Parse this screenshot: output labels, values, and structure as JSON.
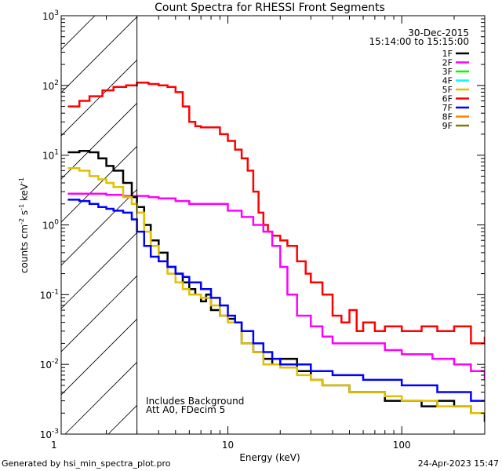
{
  "chart_data": {
    "type": "line",
    "title": "Count Spectra for RHESSI Front Segments",
    "xlabel": "Energy (keV)",
    "ylabel_parts": {
      "base": "counts cm",
      "exp1": "-2",
      "mid": " s",
      "exp2": "-1",
      "unit": " keV",
      "exp3": "-1"
    },
    "xscale": "log",
    "yscale": "log",
    "xlim": [
      1.1,
      300
    ],
    "ylim": [
      0.001,
      1000
    ],
    "x_tick_labels": [
      {
        "value": 1,
        "label": "1"
      },
      {
        "value": 10,
        "label": "10"
      },
      {
        "value": 100,
        "label": "100"
      }
    ],
    "y_tick_labels": [
      {
        "value": 0.001,
        "base": "10",
        "exp": "-3"
      },
      {
        "value": 0.01,
        "base": "10",
        "exp": "-2"
      },
      {
        "value": 0.1,
        "base": "10",
        "exp": "-1"
      },
      {
        "value": 1,
        "base": "10",
        "exp": "0"
      },
      {
        "value": 10,
        "base": "10",
        "exp": "1"
      },
      {
        "value": 100,
        "base": "10",
        "exp": "2"
      },
      {
        "value": 1000,
        "base": "10",
        "exp": "3"
      }
    ],
    "hatched_region_kev": [
      1.1,
      3.0
    ],
    "date": "30-Dec-2015",
    "time_range": "15:14:00 to 15:15:00",
    "annotations": [
      "Includes Background",
      "Att A0, FDecim 5"
    ],
    "legend": [
      {
        "name": "1F",
        "color": "#000000"
      },
      {
        "name": "2F",
        "color": "#ff00ff"
      },
      {
        "name": "3F",
        "color": "#00ff00"
      },
      {
        "name": "4F",
        "color": "#00ffff"
      },
      {
        "name": "5F",
        "color": "#e0c000"
      },
      {
        "name": "6F",
        "color": "#ff0000"
      },
      {
        "name": "7F",
        "color": "#0000ff"
      },
      {
        "name": "8F",
        "color": "#ff8000"
      },
      {
        "name": "9F",
        "color": "#808000"
      }
    ],
    "series": [
      {
        "name": "6F",
        "color": "#ff0000",
        "x": [
          1.2,
          1.4,
          1.6,
          1.9,
          2.2,
          2.6,
          3.0,
          3.5,
          4.0,
          4.5,
          5.0,
          5.5,
          6.0,
          6.5,
          7.0,
          8.0,
          9.0,
          10.0,
          11.0,
          12.0,
          13.0,
          14.0,
          15.0,
          16.0,
          17.0,
          18.0,
          20.0,
          22.0,
          25.0,
          28.0,
          30.0,
          35.0,
          40.0,
          45.0,
          50.0,
          55.0,
          60.0,
          70.0,
          80.0,
          100.0,
          130.0,
          160.0,
          200.0,
          250.0,
          300.0
        ],
        "values": [
          50,
          60,
          70,
          85,
          95,
          100,
          110,
          105,
          100,
          95,
          80,
          50,
          30,
          26,
          25,
          25,
          20,
          16,
          12,
          9,
          6,
          3,
          1.5,
          1.0,
          0.8,
          0.7,
          0.6,
          0.5,
          0.3,
          0.2,
          0.15,
          0.1,
          0.05,
          0.04,
          0.06,
          0.03,
          0.04,
          0.03,
          0.035,
          0.03,
          0.035,
          0.03,
          0.035,
          0.02,
          0.025
        ]
      },
      {
        "name": "2F",
        "color": "#ff00ff",
        "x": [
          1.2,
          1.5,
          2.0,
          2.5,
          3.0,
          3.5,
          4.0,
          5.0,
          6.0,
          7.0,
          8.0,
          10.0,
          12.0,
          14.0,
          16.0,
          18.0,
          20.0,
          22.0,
          25.0,
          30.0,
          35.0,
          40.0,
          50.0,
          60.0,
          80.0,
          100.0,
          150.0,
          200.0,
          250.0,
          300.0
        ],
        "values": [
          2.8,
          2.8,
          2.7,
          2.6,
          2.6,
          2.5,
          2.4,
          2.2,
          2.0,
          2.0,
          2.0,
          1.6,
          1.3,
          1.0,
          0.8,
          0.5,
          0.25,
          0.1,
          0.05,
          0.035,
          0.025,
          0.02,
          0.02,
          0.02,
          0.016,
          0.014,
          0.012,
          0.01,
          0.008,
          0.006
        ]
      },
      {
        "name": "1F",
        "color": "#000000",
        "x": [
          1.2,
          1.4,
          1.6,
          1.8,
          2.0,
          2.2,
          2.5,
          2.8,
          3.0,
          3.3,
          3.6,
          4.0,
          4.5,
          5.0,
          5.5,
          6.0,
          6.5,
          7.0,
          7.5,
          8.0,
          9.0,
          10.0,
          11.0,
          12.0,
          14.0,
          16.0,
          18.0,
          20.0,
          25.0,
          30.0,
          35.0,
          40.0,
          50.0,
          60.0,
          80.0,
          100.0,
          130.0,
          160.0,
          200.0,
          250.0,
          300.0
        ],
        "values": [
          11,
          11.5,
          11,
          9,
          7,
          6,
          4,
          2.5,
          1.8,
          1.0,
          0.6,
          0.4,
          0.25,
          0.2,
          0.15,
          0.12,
          0.1,
          0.08,
          0.1,
          0.06,
          0.05,
          0.045,
          0.04,
          0.02,
          0.015,
          0.012,
          0.01,
          0.012,
          0.008,
          0.006,
          0.005,
          0.005,
          0.004,
          0.004,
          0.003,
          0.003,
          0.0025,
          0.003,
          0.0025,
          0.002,
          0.0015
        ]
      },
      {
        "name": "5F",
        "color": "#e0c000",
        "x": [
          1.2,
          1.4,
          1.6,
          1.8,
          2.0,
          2.2,
          2.5,
          2.8,
          3.0,
          3.3,
          3.6,
          4.0,
          4.5,
          5.0,
          5.5,
          6.0,
          7.0,
          8.0,
          9.0,
          10.0,
          11.0,
          12.0,
          14.0,
          16.0,
          18.0,
          20.0,
          25.0,
          30.0,
          35.0,
          40.0,
          50.0,
          60.0,
          80.0,
          100.0,
          130.0,
          160.0,
          200.0,
          250.0,
          300.0
        ],
        "values": [
          6.5,
          6.0,
          5.0,
          4.5,
          4.0,
          3.5,
          2.5,
          2.0,
          1.5,
          0.8,
          0.5,
          0.3,
          0.2,
          0.15,
          0.12,
          0.1,
          0.09,
          0.07,
          0.05,
          0.04,
          0.04,
          0.02,
          0.015,
          0.01,
          0.01,
          0.009,
          0.007,
          0.006,
          0.005,
          0.005,
          0.004,
          0.004,
          0.0035,
          0.003,
          0.003,
          0.0025,
          0.0025,
          0.002,
          0.002
        ]
      },
      {
        "name": "7F",
        "color": "#0000ff",
        "x": [
          1.2,
          1.4,
          1.6,
          1.8,
          2.0,
          2.2,
          2.5,
          2.8,
          3.0,
          3.3,
          3.6,
          4.0,
          4.5,
          5.0,
          5.5,
          6.0,
          7.0,
          8.0,
          9.0,
          10.0,
          11.0,
          12.0,
          14.0,
          16.0,
          18.0,
          20.0,
          25.0,
          30.0,
          35.0,
          40.0,
          50.0,
          60.0,
          80.0,
          100.0,
          130.0,
          160.0,
          200.0,
          250.0,
          300.0
        ],
        "values": [
          2.3,
          2.2,
          2.0,
          1.8,
          1.7,
          1.6,
          1.5,
          1.2,
          0.8,
          0.5,
          0.35,
          0.3,
          0.25,
          0.2,
          0.18,
          0.15,
          0.12,
          0.09,
          0.07,
          0.05,
          0.04,
          0.03,
          0.02,
          0.015,
          0.012,
          0.01,
          0.01,
          0.008,
          0.008,
          0.007,
          0.007,
          0.006,
          0.006,
          0.005,
          0.005,
          0.004,
          0.004,
          0.003,
          0.003
        ]
      }
    ]
  },
  "footer": {
    "generated_by": "Generated by hsi_min_spectra_plot.pro",
    "timestamp": "24-Apr-2023 15:47"
  }
}
